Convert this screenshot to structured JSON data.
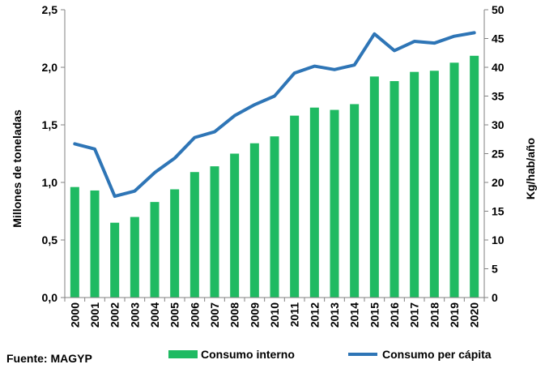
{
  "chart_data": {
    "type": "bar",
    "categories": [
      "2000",
      "2001",
      "2002",
      "2003",
      "2004",
      "2005",
      "2006",
      "2007",
      "2008",
      "2009",
      "2010",
      "2011",
      "2012",
      "2013",
      "2014",
      "2015",
      "2016",
      "2017",
      "2018",
      "2019",
      "2020"
    ],
    "series": [
      {
        "name": "Consumo interno",
        "type": "bar",
        "axis": "left",
        "color": "#1fba62",
        "values": [
          0.96,
          0.93,
          0.65,
          0.7,
          0.83,
          0.94,
          1.09,
          1.14,
          1.25,
          1.34,
          1.4,
          1.58,
          1.65,
          1.63,
          1.68,
          1.92,
          1.88,
          1.96,
          1.97,
          2.04,
          2.1
        ]
      },
      {
        "name": "Consumo per cápita",
        "type": "line",
        "axis": "right",
        "color": "#2e75b6",
        "values": [
          26.7,
          25.8,
          17.6,
          18.5,
          21.7,
          24.2,
          27.8,
          28.8,
          31.6,
          33.5,
          35.0,
          39.0,
          40.2,
          39.6,
          40.4,
          45.8,
          42.9,
          44.5,
          44.2,
          45.4,
          46.0
        ]
      }
    ],
    "ylabel": "Millones de toneladas",
    "y2label": "Kg/hab/año",
    "ylim": [
      0,
      2.5
    ],
    "y2lim": [
      0,
      50
    ],
    "yticks": [
      "0,0",
      "0,5",
      "1,0",
      "1,5",
      "2,0",
      "2,5"
    ],
    "y2ticks": [
      "0",
      "5",
      "10",
      "15",
      "20",
      "25",
      "30",
      "35",
      "40",
      "45",
      "50"
    ],
    "grid": false,
    "legend_position": "bottom"
  },
  "source": "Fuente: MAGYP"
}
